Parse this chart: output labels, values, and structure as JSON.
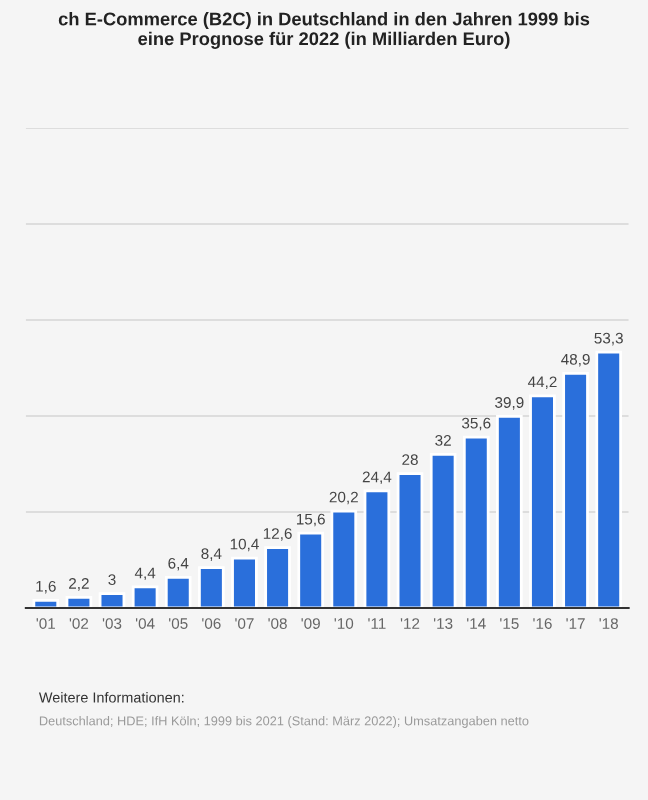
{
  "chart_data": {
    "type": "bar",
    "title": "ch E-Commerce (B2C) in Deutschland in den Jahren 1999 bis\neine Prognose für 2022 (in Milliarden Euro)",
    "categories": [
      "'01",
      "'02",
      "'03",
      "'04",
      "'05",
      "'06",
      "'07",
      "'08",
      "'09",
      "'10",
      "'11",
      "'12",
      "'13",
      "'14",
      "'15",
      "'16",
      "'17",
      "'18"
    ],
    "values": [
      1.6,
      2.2,
      3,
      4.4,
      6.4,
      8.4,
      10.4,
      12.6,
      15.6,
      20.2,
      24.4,
      28,
      32,
      35.6,
      39.9,
      44.2,
      48.9,
      53.3
    ],
    "value_labels": [
      "1,6",
      "2,2",
      "3",
      "4,4",
      "6,4",
      "8,4",
      "10,4",
      "12,6",
      "15,6",
      "20,2",
      "24,4",
      "28",
      "32",
      "35,6",
      "39,9",
      "44,2",
      "48,9",
      "53,3"
    ],
    "color": "#2a6fdb",
    "ylim": [
      0,
      100
    ],
    "yticks": [
      {
        "value": 0,
        "label": null
      },
      {
        "value": 20,
        "label": null
      },
      {
        "value": 40,
        "label": null
      },
      {
        "value": 60,
        "label": null
      },
      {
        "value": 80,
        "label": null
      },
      {
        "value": 100,
        "label": null
      }
    ],
    "grid": "y",
    "tick_labels": "x",
    "annotations": [
      "Weitere Informationen:",
      "Deutschland; HDE; IfH Köln; 1999 bis 2021 (Stand: März 2022); Umsatzangaben netto"
    ]
  }
}
